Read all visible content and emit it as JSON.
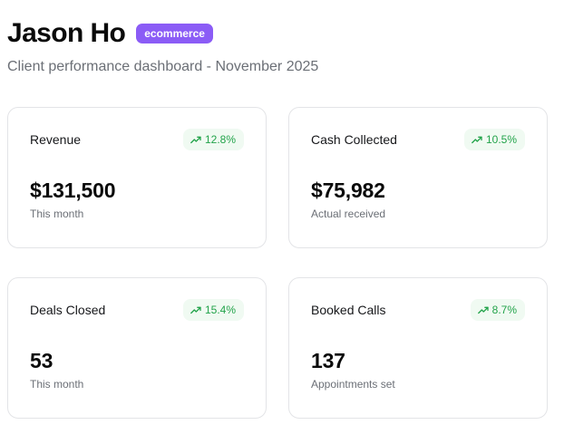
{
  "header": {
    "client_name": "Jason Ho",
    "niche_badge": "ecommerce",
    "subtitle": "Client performance dashboard - November 2025"
  },
  "colors": {
    "badge_bg": "#8b5cf6",
    "trend_positive": "#22a34a",
    "trend_bg": "#f0faf2"
  },
  "metrics": [
    {
      "label": "Revenue",
      "trend": "12.8%",
      "trend_icon": "trending-up-icon",
      "value": "$131,500",
      "caption": "This month"
    },
    {
      "label": "Cash Collected",
      "trend": "10.5%",
      "trend_icon": "trending-up-icon",
      "value": "$75,982",
      "caption": "Actual received"
    },
    {
      "label": "Deals Closed",
      "trend": "15.4%",
      "trend_icon": "trending-up-icon",
      "value": "53",
      "caption": "This month"
    },
    {
      "label": "Booked Calls",
      "trend": "8.7%",
      "trend_icon": "trending-up-icon",
      "value": "137",
      "caption": "Appointments set"
    }
  ]
}
